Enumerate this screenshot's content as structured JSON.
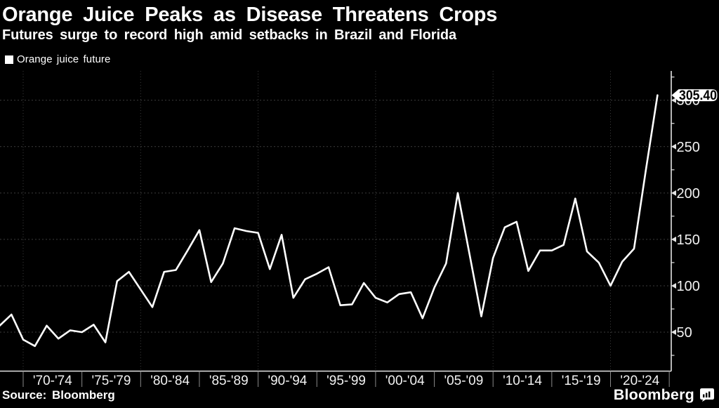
{
  "header": {
    "title": "Orange Juice Peaks as Disease Threatens Crops",
    "subtitle": "Futures surge to record high amid setbacks in Brazil and Florida"
  },
  "legend": {
    "label": "Orange juice future"
  },
  "footer": {
    "source": "Source: Bloomberg",
    "brand": "Bloomberg"
  },
  "colors": {
    "background": "#000000",
    "title_text": "#ffffff",
    "line": "#ffffff",
    "grid": "#3d3d3d",
    "axis": "#e3e3e3",
    "x_tick": "#8a8a8a",
    "tick_label": "#f2f2f2",
    "callout_bg": "#ffffff",
    "callout_text": "#000000"
  },
  "chart_data": {
    "type": "line",
    "title": "Orange Juice Peaks as Disease Threatens Crops",
    "subtitle": "Futures surge to record high amid setbacks in Brazil and Florida",
    "legend_entries": [
      "Orange juice future"
    ],
    "legend_position": "top-left",
    "grid": "dashed",
    "y_axis": {
      "side": "right",
      "ticks": [
        50,
        100,
        150,
        200,
        250,
        300
      ],
      "minor_ticks": [
        25,
        75,
        125,
        175,
        225,
        275,
        325
      ],
      "range_shown": [
        8,
        330
      ]
    },
    "x_axis": {
      "tick_years": [
        1970,
        1975,
        1980,
        1985,
        1990,
        1995,
        2000,
        2005,
        2010,
        2015,
        2020,
        2025
      ],
      "labels": [
        "'70-'74",
        "'75-'79",
        "'80-'84",
        "'85-'89",
        "'90-'94",
        "'95-'99",
        "'00-'04",
        "'05-'09",
        "'10-'14",
        "'15-'19",
        "'20-'24"
      ],
      "decade_gridline_years": [
        1970,
        1980,
        1990,
        2000,
        2010,
        2020
      ]
    },
    "last_point_label": "305.40",
    "series": [
      {
        "name": "Orange juice future",
        "x": [
          1968,
          1969,
          1970,
          1971,
          1972,
          1973,
          1974,
          1975,
          1976,
          1977,
          1978,
          1979,
          1980,
          1981,
          1982,
          1983,
          1984,
          1985,
          1986,
          1987,
          1988,
          1989,
          1990,
          1991,
          1992,
          1993,
          1994,
          1995,
          1996,
          1997,
          1998,
          1999,
          2000,
          2001,
          2002,
          2003,
          2004,
          2005,
          2006,
          2007,
          2008,
          2009,
          2010,
          2011,
          2012,
          2013,
          2014,
          2015,
          2016,
          2017,
          2018,
          2019,
          2020,
          2021,
          2022,
          2023,
          2024
        ],
        "values": [
          57,
          69,
          42,
          35,
          57,
          43,
          52,
          50,
          58,
          39,
          105,
          115,
          96,
          77,
          115,
          117,
          138,
          160,
          104,
          124,
          162,
          159,
          157,
          118,
          155,
          87,
          107,
          113,
          120,
          79,
          80,
          103,
          87,
          82,
          91,
          93,
          65,
          98,
          124,
          200,
          134,
          67,
          130,
          163,
          169,
          116,
          138,
          138,
          144,
          194,
          137,
          125,
          100,
          126,
          140,
          224,
          305.4
        ]
      }
    ]
  }
}
